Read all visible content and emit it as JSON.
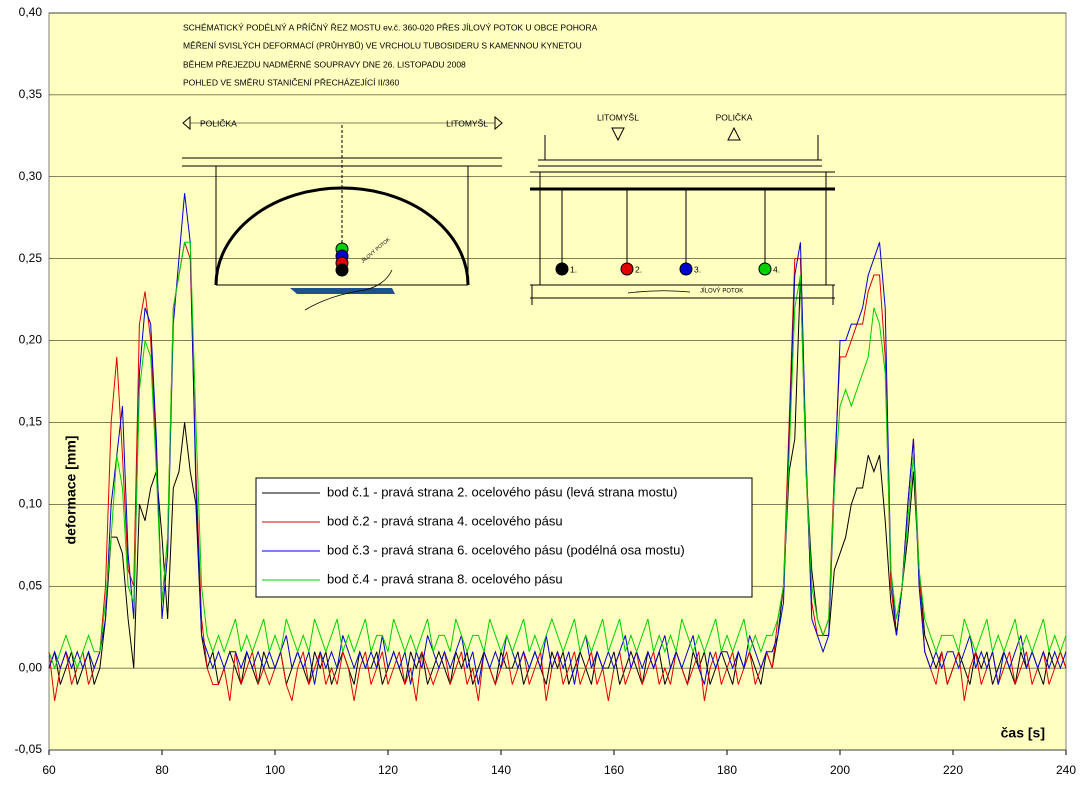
{
  "chart_data": {
    "type": "line",
    "title": [
      "SCHÉMATICKÝ PODÉLNÝ A PŘÍČNÝ ŘEZ MOSTU ev.č. 360-020 PŘES JÍLOVÝ POTOK U OBCE POHORA",
      "MĚŘENÍ SVISLÝCH DEFORMACÍ (PRŮHYBŮ) VE VRCHOLU TUBOSIDERU S KAMENNOU KYNETOU",
      "BĚHEM PŘEJEZDU NADMĚRNÉ SOUPRAVY DNE 26. LISTOPADU 2008",
      "POHLED VE SMĚRU STANIČENÍ PŘECHÁZEJÍCÍ II/360"
    ],
    "annotations": [
      "POLIČKA",
      "LITOMYŠL",
      "JÍLOVÝ POTOK",
      "LITOMYŠL",
      "POLIČKA",
      "1.",
      "2.",
      "3.",
      "4.",
      "JÍLOVÝ POTOK"
    ],
    "x_label": "čas [s]",
    "y_label": "deformace [mm]",
    "xlim": [
      60,
      240
    ],
    "xticks": [
      60,
      80,
      100,
      120,
      140,
      160,
      180,
      200,
      220,
      240
    ],
    "ylim": [
      -0.05,
      0.4
    ],
    "yticks": [
      {
        "value": -0.05,
        "label": "-0,05"
      },
      {
        "value": 0,
        "label": "0,00"
      },
      {
        "value": 0.05,
        "label": "0,05"
      },
      {
        "value": 0.1,
        "label": "0,10"
      },
      {
        "value": 0.15,
        "label": "0,15"
      },
      {
        "value": 0.2,
        "label": "0,20"
      },
      {
        "value": 0.25,
        "label": "0,25"
      },
      {
        "value": 0.3,
        "label": "0,30"
      },
      {
        "value": 0.35,
        "label": "0,35"
      },
      {
        "value": 0.4,
        "label": "0,40"
      }
    ],
    "grid": true,
    "background": "#ffffc0",
    "x": [
      60,
      61,
      62,
      63,
      64,
      65,
      66,
      67,
      68,
      69,
      70,
      71,
      72,
      73,
      74,
      75,
      76,
      77,
      78,
      79,
      80,
      81,
      82,
      83,
      84,
      85,
      86,
      87,
      88,
      89,
      90,
      91,
      92,
      93,
      94,
      95,
      96,
      97,
      98,
      99,
      100,
      101,
      102,
      103,
      104,
      105,
      106,
      107,
      108,
      109,
      110,
      111,
      112,
      113,
      114,
      115,
      116,
      117,
      118,
      119,
      120,
      121,
      122,
      123,
      124,
      125,
      126,
      127,
      128,
      129,
      130,
      131,
      132,
      133,
      134,
      135,
      136,
      137,
      138,
      139,
      140,
      141,
      142,
      143,
      144,
      145,
      146,
      147,
      148,
      149,
      150,
      151,
      152,
      153,
      154,
      155,
      156,
      157,
      158,
      159,
      160,
      161,
      162,
      163,
      164,
      165,
      166,
      167,
      168,
      169,
      170,
      171,
      172,
      173,
      174,
      175,
      176,
      177,
      178,
      179,
      180,
      181,
      182,
      183,
      184,
      185,
      186,
      187,
      188,
      189,
      190,
      191,
      192,
      193,
      194,
      195,
      196,
      197,
      198,
      199,
      200,
      201,
      202,
      203,
      204,
      205,
      206,
      207,
      208,
      209,
      210,
      211,
      212,
      213,
      214,
      215,
      216,
      217,
      218,
      219,
      220,
      221,
      222,
      223,
      224,
      225,
      226,
      227,
      228,
      229,
      230,
      231,
      232,
      233,
      234,
      235,
      236,
      237,
      238,
      239,
      240
    ],
    "series": [
      {
        "name": "bod č.1 - pravá strana 2. ocelového pásu (levá strana mostu)",
        "color": "#000000",
        "values": [
          0.0,
          0.01,
          -0.01,
          0.0,
          0.01,
          -0.01,
          0.0,
          0.01,
          -0.01,
          0.0,
          0.03,
          0.08,
          0.08,
          0.07,
          0.03,
          0.0,
          0.1,
          0.09,
          0.11,
          0.12,
          0.08,
          0.03,
          0.11,
          0.12,
          0.15,
          0.12,
          0.1,
          0.02,
          0.0,
          0.01,
          -0.01,
          0.0,
          0.01,
          0.0,
          -0.01,
          0.01,
          0.0,
          -0.01,
          0.01,
          0.0,
          0.0,
          0.01,
          -0.01,
          0.0,
          0.01,
          0.0,
          -0.01,
          0.01,
          0.0,
          0.01,
          -0.01,
          0.0,
          0.01,
          0.0,
          -0.01,
          0.01,
          0.0,
          0.0,
          0.01,
          -0.01,
          0.0,
          0.01,
          0.0,
          -0.01,
          0.01,
          0.0,
          0.01,
          -0.01,
          0.0,
          0.01,
          0.0,
          -0.01,
          0.01,
          0.0,
          0.01,
          -0.01,
          0.0,
          0.01,
          0.0,
          -0.01,
          0.01,
          0.0,
          0.0,
          0.01,
          -0.01,
          0.0,
          0.01,
          0.0,
          -0.01,
          0.01,
          0.0,
          0.01,
          -0.01,
          0.0,
          0.01,
          0.0,
          -0.01,
          0.01,
          0.0,
          0.0,
          0.01,
          -0.01,
          0.0,
          0.01,
          0.0,
          -0.01,
          0.01,
          0.0,
          0.01,
          -0.01,
          0.0,
          0.01,
          0.0,
          -0.01,
          0.01,
          0.0,
          0.01,
          -0.01,
          0.0,
          0.01,
          0.0,
          -0.01,
          0.01,
          0.0,
          0.01,
          0.0,
          -0.01,
          0.01,
          0.0,
          0.02,
          0.05,
          0.12,
          0.14,
          0.24,
          0.12,
          0.06,
          0.03,
          0.02,
          0.02,
          0.06,
          0.07,
          0.08,
          0.1,
          0.11,
          0.11,
          0.13,
          0.12,
          0.13,
          0.09,
          0.04,
          0.02,
          0.05,
          0.08,
          0.12,
          0.06,
          0.02,
          0.01,
          0.0,
          0.01,
          -0.01,
          0.0,
          0.01,
          0.0,
          -0.01,
          0.01,
          0.0,
          0.01,
          -0.01,
          0.0,
          0.01,
          0.0,
          -0.01,
          0.01,
          0.0,
          0.01,
          0.0,
          -0.01,
          0.01,
          0.0,
          0.01,
          0.0
        ]
      },
      {
        "name": "bod č.2 - pravá strana 4. ocelového pásu",
        "color": "#e00000",
        "values": [
          0.01,
          -0.02,
          0.0,
          0.01,
          -0.01,
          0.0,
          0.01,
          -0.01,
          0.0,
          0.01,
          0.05,
          0.15,
          0.19,
          0.13,
          0.06,
          0.05,
          0.21,
          0.23,
          0.2,
          0.13,
          0.04,
          0.08,
          0.22,
          0.24,
          0.26,
          0.25,
          0.12,
          0.03,
          0.0,
          -0.01,
          -0.01,
          0.0,
          -0.02,
          0.01,
          -0.01,
          0.0,
          0.01,
          -0.01,
          0.0,
          -0.01,
          0.0,
          0.01,
          -0.01,
          -0.02,
          0.0,
          0.01,
          -0.01,
          0.0,
          0.01,
          -0.01,
          0.0,
          -0.01,
          0.01,
          0.0,
          -0.02,
          0.0,
          0.01,
          -0.01,
          0.0,
          0.01,
          -0.01,
          0.0,
          0.01,
          -0.01,
          0.0,
          -0.02,
          0.01,
          0.0,
          -0.01,
          0.0,
          0.01,
          -0.01,
          0.0,
          0.01,
          -0.01,
          0.0,
          -0.02,
          0.01,
          0.0,
          -0.01,
          0.0,
          0.01,
          -0.01,
          0.0,
          0.01,
          -0.01,
          0.0,
          0.01,
          -0.02,
          0.0,
          0.01,
          -0.01,
          0.0,
          0.01,
          -0.01,
          0.0,
          0.01,
          -0.01,
          0.0,
          -0.02,
          0.0,
          0.01,
          -0.01,
          0.0,
          0.01,
          -0.01,
          0.0,
          0.01,
          -0.01,
          0.0,
          -0.01,
          0.01,
          0.0,
          -0.01,
          0.0,
          0.01,
          -0.02,
          0.0,
          0.01,
          -0.01,
          0.0,
          0.01,
          -0.01,
          0.0,
          0.01,
          -0.01,
          0.0,
          0.01,
          0.0,
          0.03,
          0.05,
          0.15,
          0.25,
          0.25,
          0.12,
          0.04,
          0.02,
          0.02,
          0.03,
          0.12,
          0.19,
          0.19,
          0.2,
          0.21,
          0.21,
          0.23,
          0.24,
          0.24,
          0.19,
          0.05,
          0.02,
          0.05,
          0.1,
          0.14,
          0.06,
          0.01,
          0.0,
          -0.01,
          0.01,
          -0.01,
          0.0,
          0.01,
          -0.02,
          0.0,
          0.01,
          -0.01,
          0.0,
          0.01,
          -0.01,
          0.0,
          0.01,
          -0.01,
          0.0,
          0.01,
          -0.01,
          0.0,
          0.01,
          -0.01,
          0.0,
          0.01,
          0.0
        ]
      },
      {
        "name": "bod č.3 - pravá strana 6. ocelového pásu (podélná osa mostu)",
        "color": "#0000d0",
        "values": [
          0.0,
          0.01,
          0.0,
          0.01,
          0.0,
          0.01,
          0.0,
          0.01,
          0.0,
          0.01,
          0.03,
          0.1,
          0.13,
          0.16,
          0.07,
          0.03,
          0.18,
          0.22,
          0.21,
          0.14,
          0.03,
          0.07,
          0.21,
          0.25,
          0.29,
          0.26,
          0.11,
          0.02,
          0.01,
          0.0,
          0.01,
          0.0,
          0.01,
          0.01,
          0.0,
          0.01,
          0.0,
          0.01,
          0.0,
          0.01,
          0.0,
          0.01,
          0.02,
          0.0,
          0.01,
          0.0,
          0.01,
          -0.01,
          0.01,
          0.0,
          0.01,
          0.0,
          0.02,
          0.01,
          0.0,
          0.01,
          0.0,
          0.01,
          0.0,
          0.02,
          0.0,
          0.01,
          0.0,
          0.01,
          -0.01,
          0.01,
          0.0,
          0.02,
          0.01,
          0.0,
          0.01,
          0.0,
          0.01,
          0.02,
          0.0,
          0.01,
          -0.01,
          0.01,
          0.0,
          0.01,
          0.0,
          0.02,
          0.01,
          0.0,
          0.01,
          0.0,
          0.01,
          0.0,
          0.02,
          0.0,
          0.01,
          0.0,
          0.01,
          -0.01,
          0.01,
          0.02,
          0.0,
          0.01,
          0.0,
          0.01,
          0.0,
          0.01,
          0.02,
          0.0,
          0.01,
          0.0,
          0.01,
          0.0,
          0.01,
          0.02,
          0.0,
          0.01,
          0.0,
          0.01,
          0.02,
          0.0,
          -0.01,
          0.01,
          0.0,
          0.01,
          0.01,
          0.0,
          0.01,
          0.0,
          0.02,
          0.01,
          0.0,
          0.01,
          0.01,
          0.02,
          0.04,
          0.14,
          0.24,
          0.26,
          0.13,
          0.03,
          0.02,
          0.01,
          0.02,
          0.11,
          0.2,
          0.2,
          0.21,
          0.21,
          0.22,
          0.24,
          0.25,
          0.26,
          0.22,
          0.06,
          0.02,
          0.05,
          0.1,
          0.14,
          0.05,
          0.01,
          0.0,
          0.01,
          0.0,
          0.01,
          0.01,
          0.0,
          0.01,
          0.02,
          0.0,
          0.01,
          0.0,
          0.01,
          -0.01,
          0.01,
          0.0,
          0.01,
          0.02,
          0.0,
          0.01,
          0.0,
          0.01,
          0.0,
          0.01,
          0.0,
          0.01
        ]
      },
      {
        "name": "bod č.4 - pravá strana 8. ocelového pásu",
        "color": "#00d000",
        "values": [
          0.01,
          0.0,
          0.01,
          0.02,
          0.01,
          0.0,
          0.01,
          0.02,
          0.01,
          0.01,
          0.04,
          0.08,
          0.13,
          0.11,
          0.05,
          0.04,
          0.17,
          0.2,
          0.19,
          0.12,
          0.04,
          0.08,
          0.22,
          0.24,
          0.26,
          0.26,
          0.15,
          0.05,
          0.02,
          0.01,
          0.02,
          0.01,
          0.02,
          0.03,
          0.01,
          0.02,
          0.01,
          0.02,
          0.03,
          0.01,
          0.02,
          0.01,
          0.03,
          0.02,
          0.01,
          0.02,
          0.01,
          0.03,
          0.02,
          0.01,
          0.02,
          0.03,
          0.01,
          0.02,
          0.01,
          0.02,
          0.03,
          0.01,
          0.02,
          0.02,
          0.01,
          0.03,
          0.02,
          0.01,
          0.02,
          0.01,
          0.02,
          0.03,
          0.01,
          0.02,
          0.02,
          0.01,
          0.03,
          0.02,
          0.01,
          0.02,
          0.02,
          0.01,
          0.03,
          0.02,
          0.01,
          0.02,
          0.01,
          0.02,
          0.03,
          0.01,
          0.02,
          0.01,
          0.02,
          0.03,
          0.02,
          0.01,
          0.02,
          0.03,
          0.01,
          0.02,
          0.01,
          0.02,
          0.03,
          0.01,
          0.02,
          0.03,
          0.01,
          0.02,
          0.01,
          0.02,
          0.03,
          0.01,
          0.02,
          0.01,
          0.02,
          0.01,
          0.03,
          0.02,
          0.01,
          0.02,
          0.01,
          0.02,
          0.03,
          0.01,
          0.02,
          0.01,
          0.02,
          0.03,
          0.01,
          0.02,
          0.01,
          0.02,
          0.02,
          0.03,
          0.05,
          0.13,
          0.22,
          0.24,
          0.12,
          0.05,
          0.03,
          0.02,
          0.03,
          0.11,
          0.16,
          0.17,
          0.16,
          0.17,
          0.18,
          0.19,
          0.22,
          0.21,
          0.18,
          0.06,
          0.03,
          0.05,
          0.09,
          0.13,
          0.06,
          0.03,
          0.02,
          0.01,
          0.02,
          0.02,
          0.02,
          0.01,
          0.03,
          0.02,
          0.01,
          0.02,
          0.03,
          0.01,
          0.02,
          0.01,
          0.02,
          0.03,
          0.01,
          0.02,
          0.01,
          0.02,
          0.03,
          0.01,
          0.02,
          0.01,
          0.02
        ]
      }
    ]
  }
}
